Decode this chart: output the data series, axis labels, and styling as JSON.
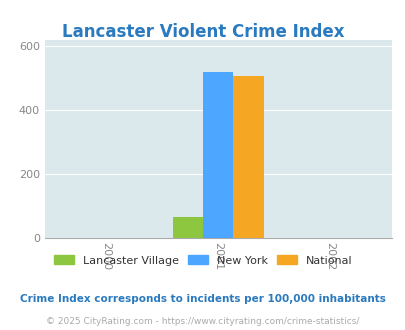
{
  "title": "Lancaster Violent Crime Index",
  "title_color": "#2a7abf",
  "bar_year": 2001,
  "x_ticks": [
    2000,
    2001,
    2002
  ],
  "ylim": [
    0,
    620
  ],
  "yticks": [
    0,
    200,
    400,
    600
  ],
  "lancaster_value": 65,
  "newyork_value": 520,
  "national_value": 505,
  "lancaster_color": "#8dc63f",
  "newyork_color": "#4da6ff",
  "national_color": "#f5a623",
  "bg_color": "#dce9ec",
  "bar_width": 0.27,
  "legend_labels": [
    "Lancaster Village",
    "New York",
    "National"
  ],
  "footnote1": "Crime Index corresponds to incidents per 100,000 inhabitants",
  "footnote2": "© 2025 CityRating.com - https://www.cityrating.com/crime-statistics/",
  "footnote1_color": "#2a7abf",
  "footnote2_color": "#aaaaaa",
  "xlim": [
    1999.45,
    2002.55
  ]
}
